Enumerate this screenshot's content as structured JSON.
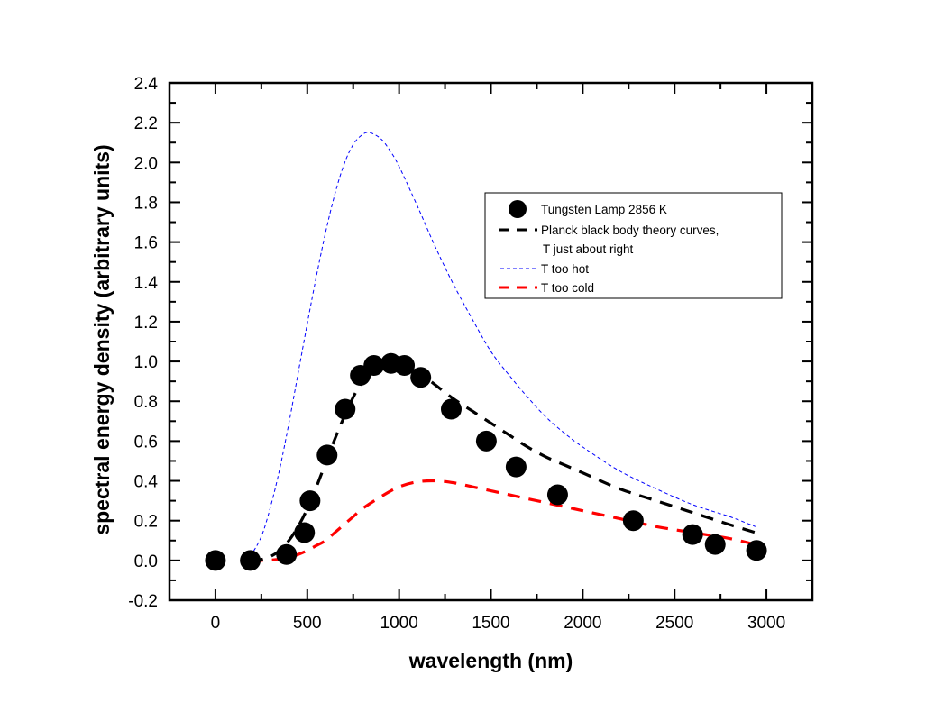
{
  "chart_data": {
    "type": "scatter",
    "title": "",
    "xlabel": "wavelength (nm)",
    "ylabel": "spectral energy density (arbitrary units)",
    "xlim": [
      -250,
      3250
    ],
    "ylim": [
      -0.2,
      2.4
    ],
    "xticks": [
      0,
      500,
      1000,
      1500,
      2000,
      2500,
      3000
    ],
    "xtick_labels": [
      "0",
      "500",
      "1000",
      "1500",
      "2000",
      "2500",
      "3000"
    ],
    "yticks": [
      -0.2,
      0.0,
      0.2,
      0.4,
      0.6,
      0.8,
      1.0,
      1.2,
      1.4,
      1.6,
      1.8,
      2.0,
      2.2,
      2.4
    ],
    "ytick_labels": [
      "-0.2",
      "0.0",
      "0.2",
      "0.4",
      "0.6",
      "0.8",
      "1.0",
      "1.2",
      "1.4",
      "1.6",
      "1.8",
      "2.0",
      "2.2",
      "2.4"
    ],
    "grid": false,
    "legend_position": "top-right",
    "series": [
      {
        "name": "Tungsten Lamp 2856 K",
        "style": "markers",
        "color": "#000000",
        "x": [
          0,
          190,
          387,
          485,
          515,
          608,
          706,
          789,
          863,
          956,
          1029,
          1118,
          1284,
          1475,
          1637,
          1863,
          2275,
          2598,
          2721,
          2946
        ],
        "y": [
          0.0,
          0.0,
          0.03,
          0.14,
          0.3,
          0.53,
          0.76,
          0.93,
          0.98,
          0.99,
          0.98,
          0.92,
          0.76,
          0.6,
          0.47,
          0.33,
          0.2,
          0.13,
          0.08,
          0.05
        ]
      },
      {
        "name": "Planck black body theory curves, T just about right",
        "legend_lines": [
          "Planck black body theory curves,",
          "T just about right"
        ],
        "style": "dash",
        "color": "#000000",
        "x": [
          190,
          250,
          300,
          350,
          400,
          450,
          500,
          550,
          600,
          650,
          700,
          750,
          800,
          850,
          900,
          950,
          1000,
          1100,
          1200,
          1300,
          1400,
          1500,
          1600,
          1700,
          1800,
          1900,
          2000,
          2200,
          2400,
          2600,
          2800,
          2940
        ],
        "y": [
          0.0,
          0.005,
          0.02,
          0.05,
          0.1,
          0.17,
          0.26,
          0.37,
          0.49,
          0.61,
          0.72,
          0.82,
          0.9,
          0.95,
          0.98,
          1.0,
          0.99,
          0.95,
          0.88,
          0.81,
          0.75,
          0.69,
          0.63,
          0.57,
          0.52,
          0.48,
          0.44,
          0.36,
          0.3,
          0.24,
          0.18,
          0.14
        ]
      },
      {
        "name": "T too hot",
        "style": "short-dash",
        "color": "#0000ff",
        "x": [
          190,
          250,
          300,
          350,
          400,
          450,
          500,
          550,
          600,
          650,
          700,
          750,
          800,
          840,
          900,
          950,
          1000,
          1100,
          1200,
          1300,
          1400,
          1500,
          1600,
          1700,
          1800,
          1900,
          2000,
          2200,
          2400,
          2600,
          2800,
          2940
        ],
        "y": [
          0.02,
          0.12,
          0.27,
          0.46,
          0.69,
          0.94,
          1.19,
          1.43,
          1.65,
          1.84,
          1.99,
          2.09,
          2.14,
          2.15,
          2.12,
          2.06,
          1.98,
          1.78,
          1.57,
          1.38,
          1.21,
          1.05,
          0.93,
          0.82,
          0.72,
          0.64,
          0.57,
          0.45,
          0.36,
          0.28,
          0.22,
          0.17
        ]
      },
      {
        "name": "T too cold",
        "style": "dash",
        "color": "#ff0000",
        "x": [
          190,
          250,
          300,
          350,
          400,
          450,
          500,
          550,
          600,
          650,
          700,
          750,
          800,
          900,
          1000,
          1100,
          1200,
          1300,
          1400,
          1500,
          1600,
          1700,
          1800,
          1900,
          2000,
          2200,
          2400,
          2600,
          2800,
          2940
        ],
        "y": [
          0.0,
          0.0,
          0.002,
          0.006,
          0.015,
          0.03,
          0.05,
          0.075,
          0.1,
          0.14,
          0.18,
          0.22,
          0.26,
          0.32,
          0.37,
          0.395,
          0.4,
          0.39,
          0.37,
          0.35,
          0.33,
          0.31,
          0.29,
          0.27,
          0.25,
          0.21,
          0.17,
          0.14,
          0.11,
          0.08
        ]
      }
    ]
  }
}
